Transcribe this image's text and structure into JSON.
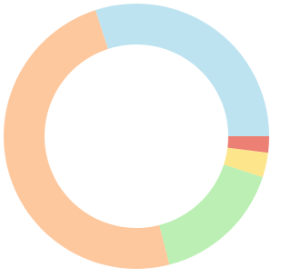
{
  "chart_data": {
    "type": "donut",
    "values": [
      30,
      2,
      3,
      16,
      49
    ],
    "colors": [
      "#bde3f0",
      "#ec8074",
      "#fde58c",
      "#bcefb4",
      "#fec89e"
    ]
  }
}
